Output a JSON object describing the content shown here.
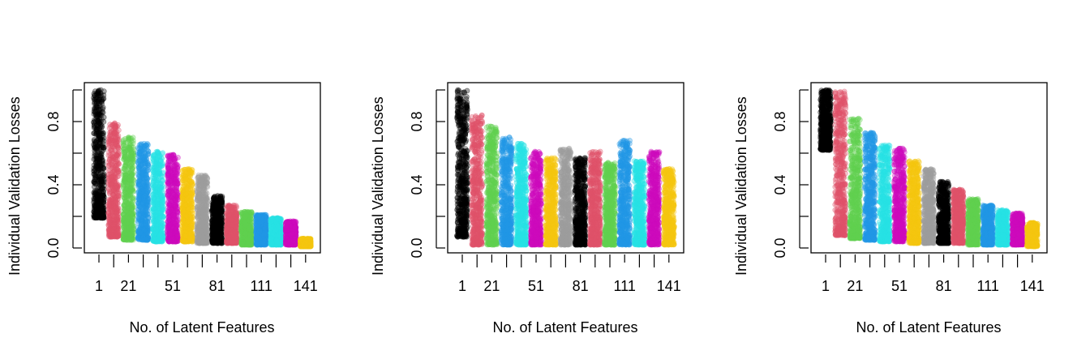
{
  "chart_data": [
    {
      "type": "scatter",
      "xlabel": "No. of Latent Features",
      "ylabel": "Individual Validation Losses",
      "x_ticklabels": [
        "1",
        "21",
        "51",
        "81",
        "111",
        "141"
      ],
      "y_ticklabels": [
        "0.0",
        "0.4",
        "0.8"
      ],
      "ylim": [
        0,
        1
      ],
      "grid": false,
      "groups": [
        {
          "x": 1,
          "color": "#000000",
          "min": 0.19,
          "max": 1.0
        },
        {
          "x": 11,
          "color": "#DF536B",
          "min": 0.07,
          "max": 0.79
        },
        {
          "x": 21,
          "color": "#61D04F",
          "min": 0.05,
          "max": 0.7
        },
        {
          "x": 31,
          "color": "#2297E6",
          "min": 0.05,
          "max": 0.66
        },
        {
          "x": 41,
          "color": "#28E2E5",
          "min": 0.04,
          "max": 0.61
        },
        {
          "x": 51,
          "color": "#CD0BBC",
          "min": 0.04,
          "max": 0.59
        },
        {
          "x": 61,
          "color": "#F5C710",
          "min": 0.04,
          "max": 0.5
        },
        {
          "x": 71,
          "color": "#9E9E9E",
          "min": 0.03,
          "max": 0.46
        },
        {
          "x": 81,
          "color": "#000000",
          "min": 0.03,
          "max": 0.33
        },
        {
          "x": 91,
          "color": "#DF536B",
          "min": 0.03,
          "max": 0.27
        },
        {
          "x": 101,
          "color": "#61D04F",
          "min": 0.02,
          "max": 0.23
        },
        {
          "x": 111,
          "color": "#2297E6",
          "min": 0.02,
          "max": 0.21
        },
        {
          "x": 121,
          "color": "#28E2E5",
          "min": 0.02,
          "max": 0.19
        },
        {
          "x": 131,
          "color": "#CD0BBC",
          "min": 0.02,
          "max": 0.17
        },
        {
          "x": 141,
          "color": "#F5C710",
          "min": 0.01,
          "max": 0.06
        }
      ]
    },
    {
      "type": "scatter",
      "xlabel": "No. of Latent Features",
      "ylabel": "Individual Validation Losses",
      "x_ticklabels": [
        "1",
        "21",
        "51",
        "81",
        "111",
        "141"
      ],
      "y_ticklabels": [
        "0.0",
        "0.4",
        "0.8"
      ],
      "ylim": [
        0,
        1
      ],
      "grid": false,
      "groups": [
        {
          "x": 1,
          "color": "#000000",
          "min": 0.07,
          "max": 1.0
        },
        {
          "x": 11,
          "color": "#DF536B",
          "min": 0.02,
          "max": 0.84
        },
        {
          "x": 21,
          "color": "#61D04F",
          "min": 0.02,
          "max": 0.77
        },
        {
          "x": 31,
          "color": "#2297E6",
          "min": 0.02,
          "max": 0.7
        },
        {
          "x": 41,
          "color": "#28E2E5",
          "min": 0.02,
          "max": 0.66
        },
        {
          "x": 51,
          "color": "#CD0BBC",
          "min": 0.02,
          "max": 0.61
        },
        {
          "x": 61,
          "color": "#F5C710",
          "min": 0.02,
          "max": 0.57
        },
        {
          "x": 71,
          "color": "#9E9E9E",
          "min": 0.02,
          "max": 0.63
        },
        {
          "x": 81,
          "color": "#000000",
          "min": 0.02,
          "max": 0.57
        },
        {
          "x": 91,
          "color": "#DF536B",
          "min": 0.02,
          "max": 0.61
        },
        {
          "x": 101,
          "color": "#61D04F",
          "min": 0.02,
          "max": 0.54
        },
        {
          "x": 111,
          "color": "#2297E6",
          "min": 0.02,
          "max": 0.68
        },
        {
          "x": 121,
          "color": "#28E2E5",
          "min": 0.02,
          "max": 0.55
        },
        {
          "x": 131,
          "color": "#CD0BBC",
          "min": 0.02,
          "max": 0.61
        },
        {
          "x": 141,
          "color": "#F5C710",
          "min": 0.02,
          "max": 0.5
        }
      ]
    },
    {
      "type": "scatter",
      "xlabel": "No. of Latent Features",
      "ylabel": "Individual Validation Losses",
      "x_ticklabels": [
        "1",
        "21",
        "51",
        "81",
        "111",
        "141"
      ],
      "y_ticklabels": [
        "0.0",
        "0.4",
        "0.8"
      ],
      "ylim": [
        0,
        1
      ],
      "grid": false,
      "groups": [
        {
          "x": 1,
          "color": "#000000",
          "min": 0.62,
          "max": 1.0
        },
        {
          "x": 11,
          "color": "#DF536B",
          "min": 0.08,
          "max": 0.99
        },
        {
          "x": 21,
          "color": "#61D04F",
          "min": 0.06,
          "max": 0.82
        },
        {
          "x": 31,
          "color": "#2297E6",
          "min": 0.05,
          "max": 0.73
        },
        {
          "x": 41,
          "color": "#28E2E5",
          "min": 0.04,
          "max": 0.65
        },
        {
          "x": 51,
          "color": "#CD0BBC",
          "min": 0.04,
          "max": 0.63
        },
        {
          "x": 61,
          "color": "#F5C710",
          "min": 0.03,
          "max": 0.55
        },
        {
          "x": 71,
          "color": "#9E9E9E",
          "min": 0.03,
          "max": 0.5
        },
        {
          "x": 81,
          "color": "#000000",
          "min": 0.03,
          "max": 0.42
        },
        {
          "x": 91,
          "color": "#DF536B",
          "min": 0.03,
          "max": 0.37
        },
        {
          "x": 101,
          "color": "#61D04F",
          "min": 0.02,
          "max": 0.31
        },
        {
          "x": 111,
          "color": "#2297E6",
          "min": 0.02,
          "max": 0.27
        },
        {
          "x": 121,
          "color": "#28E2E5",
          "min": 0.02,
          "max": 0.24
        },
        {
          "x": 131,
          "color": "#CD0BBC",
          "min": 0.02,
          "max": 0.22
        },
        {
          "x": 141,
          "color": "#F5C710",
          "min": 0.01,
          "max": 0.16
        }
      ]
    }
  ]
}
